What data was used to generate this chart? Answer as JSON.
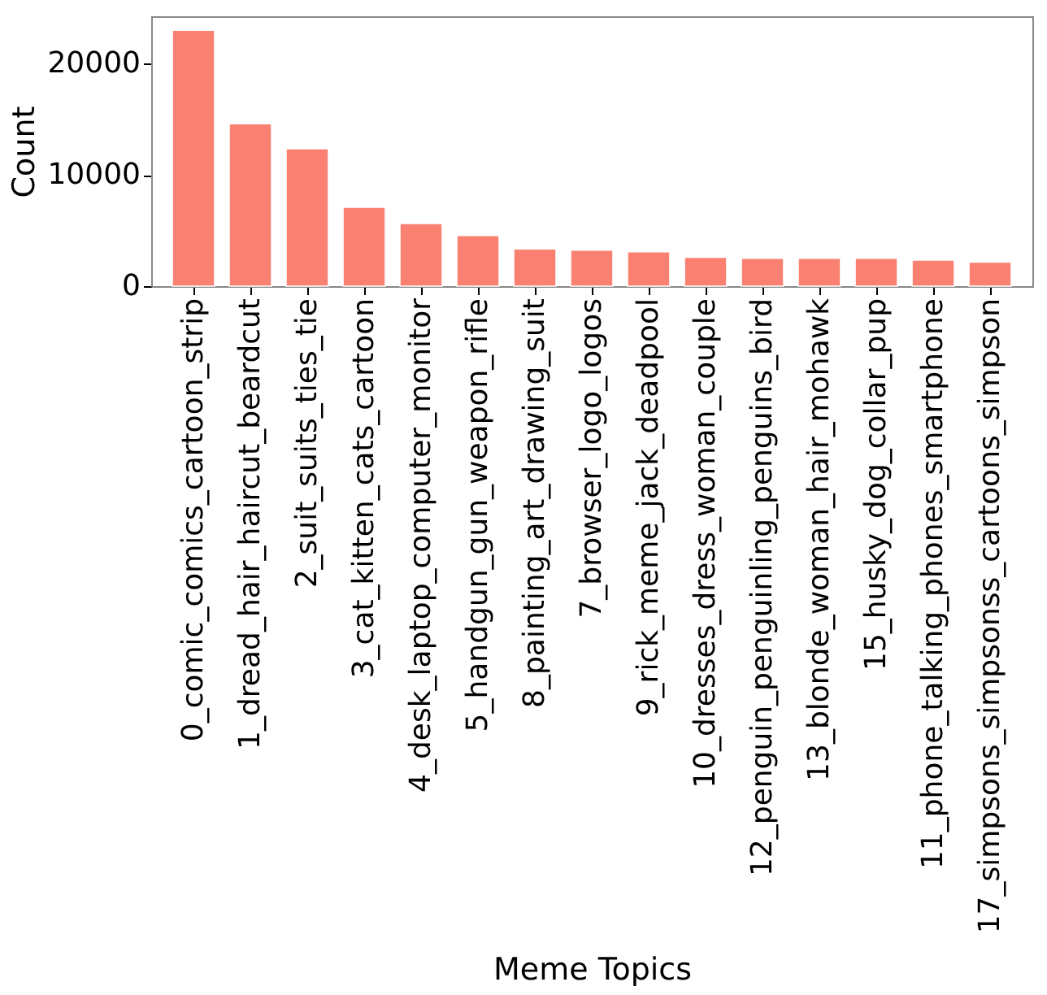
{
  "chart_data": {
    "type": "bar",
    "xlabel": "Meme Topics",
    "ylabel": "Count",
    "categories": [
      "0_comic_comics_cartoon_strip",
      "1_dread_hair_haircut_beardcut",
      "2_suit_suits_ties_tie",
      "3_cat_kitten_cats_cartoon",
      "4_desk_laptop_computer_monitor",
      "5_handgun_gun_weapon_rifle",
      "8_painting_art_drawing_suit",
      "7_browser_logo_logos",
      "9_rick_meme_jack_deadpool",
      "10_dresses_dress_woman_couple",
      "12_penguin_penguinling_penguins_bird",
      "13_blonde_woman_hair_mohawk",
      "15_husky_dog_collar_pup",
      "11_phone_talking_phones_smartphone",
      "17_simpsons_simpsonss_cartoons_simpson"
    ],
    "values": [
      23000,
      14600,
      12350,
      7100,
      5630,
      4560,
      3340,
      3240,
      3090,
      2600,
      2500,
      2500,
      2500,
      2350,
      2160
    ],
    "color": "#fa8072",
    "ylim": [
      0,
      24260
    ],
    "yticks": [
      0,
      10000,
      20000
    ],
    "grid": false
  }
}
